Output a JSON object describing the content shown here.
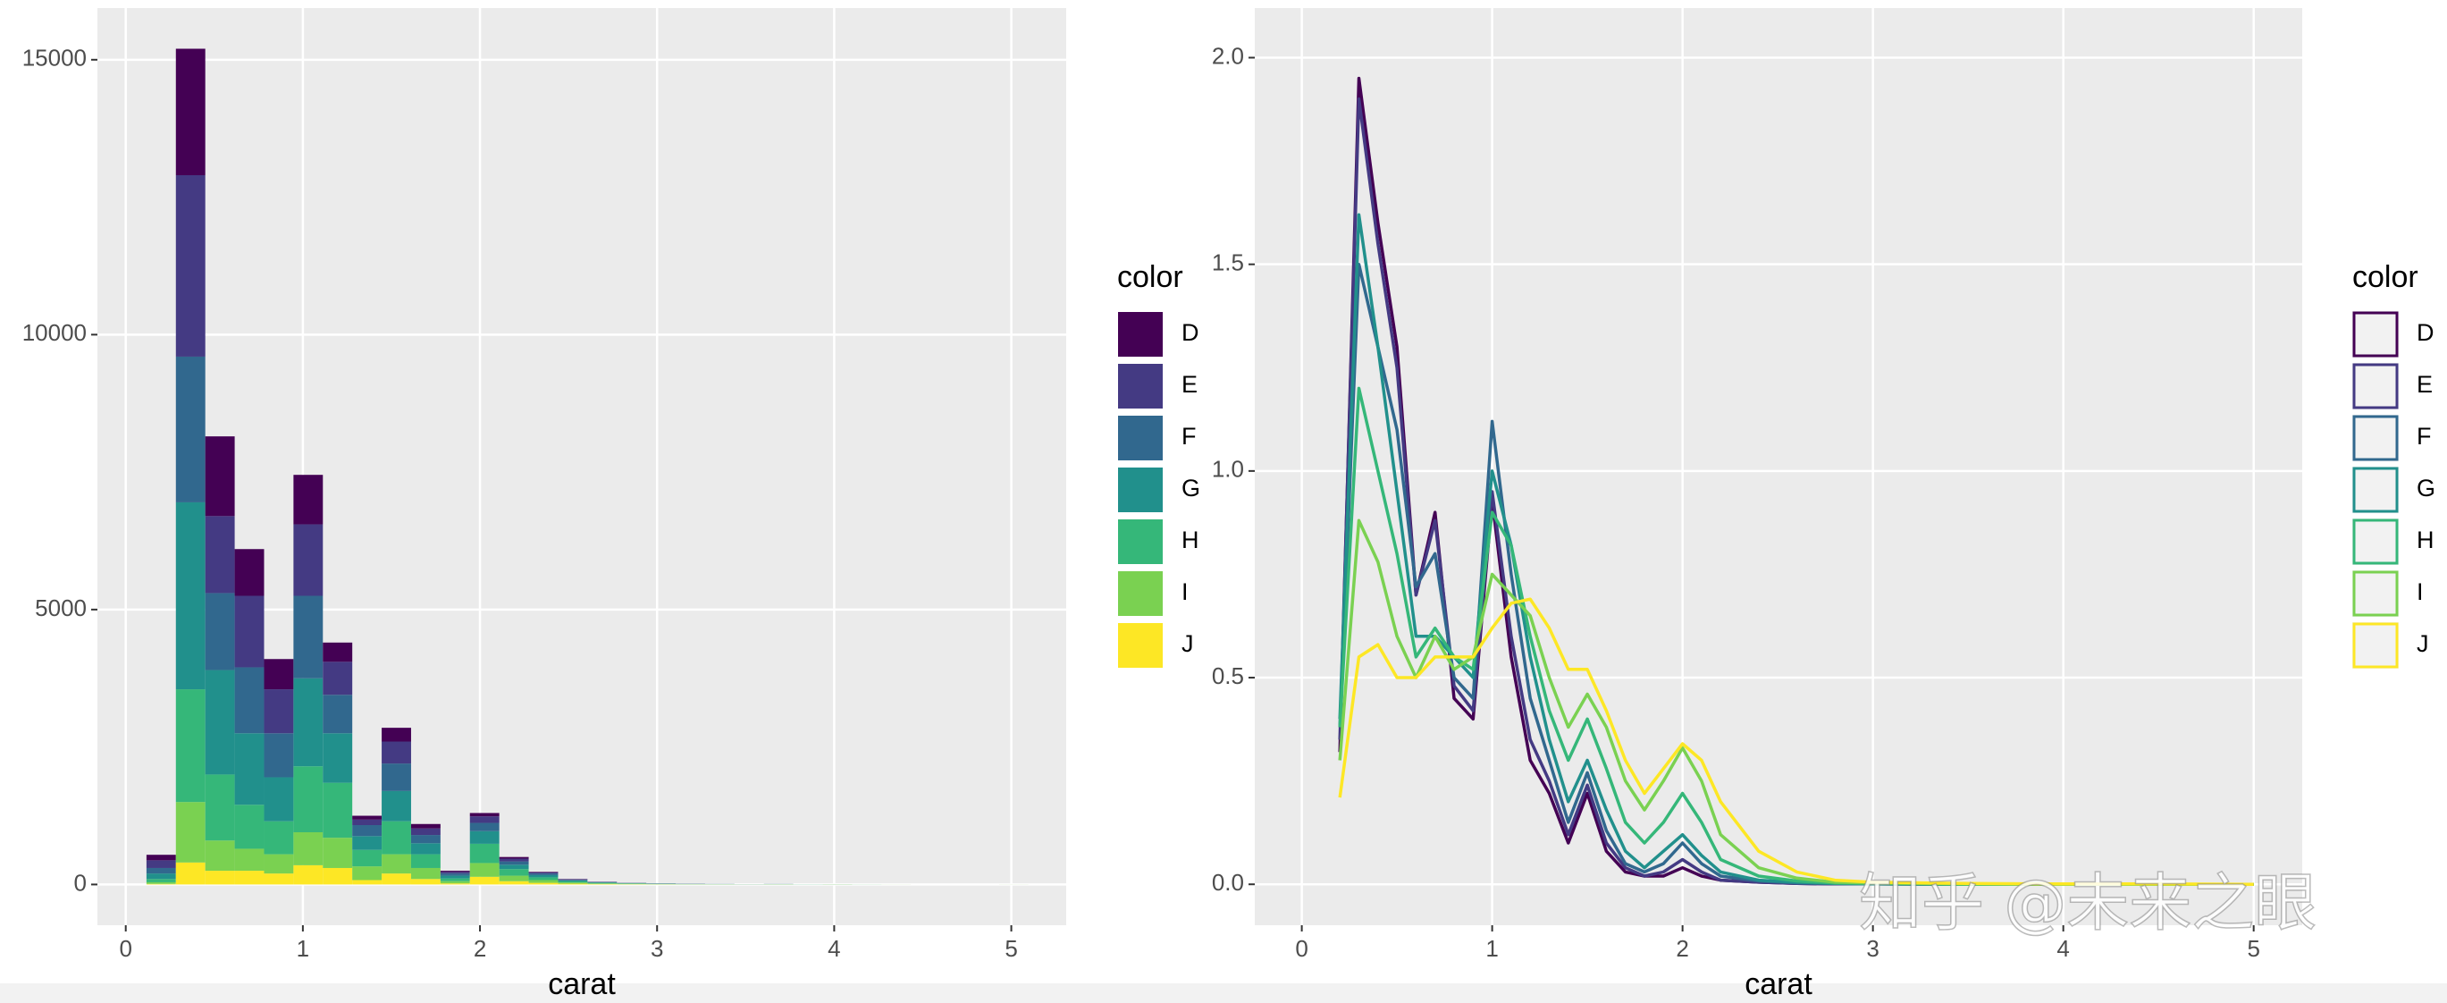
{
  "chart_data": [
    {
      "type": "histogram",
      "x_label": "carat",
      "legend_title": "color",
      "bins": [
        0.117,
        0.283,
        0.449,
        0.615,
        0.781,
        0.947,
        1.113,
        1.279,
        1.445,
        1.611,
        1.777,
        1.943,
        2.109,
        2.275,
        2.441,
        2.607,
        2.773,
        2.939,
        3.105,
        3.271,
        3.437,
        3.603,
        3.769,
        3.935,
        4.101,
        4.267,
        4.433,
        4.599,
        4.765,
        4.931,
        5.097
      ],
      "series": [
        {
          "name": "D",
          "color": "#440154",
          "values": [
            100,
            2300,
            1450,
            850,
            550,
            900,
            350,
            70,
            250,
            80,
            20,
            60,
            30,
            10,
            5,
            2,
            1,
            1,
            1,
            0,
            0,
            0,
            0,
            0,
            0,
            0,
            0,
            0,
            0,
            0
          ]
        },
        {
          "name": "E",
          "color": "#443A83",
          "values": [
            140,
            3300,
            1400,
            1300,
            800,
            1300,
            600,
            100,
            400,
            120,
            30,
            120,
            50,
            20,
            10,
            5,
            2,
            2,
            1,
            1,
            0,
            1,
            0,
            0,
            0,
            0,
            0,
            0,
            0,
            0
          ]
        },
        {
          "name": "F",
          "color": "#31688E",
          "values": [
            100,
            2650,
            1400,
            1200,
            800,
            1500,
            700,
            200,
            500,
            150,
            40,
            150,
            60,
            30,
            10,
            5,
            3,
            2,
            2,
            1,
            1,
            1,
            0,
            0,
            0,
            0,
            0,
            0,
            0,
            0
          ]
        },
        {
          "name": "G",
          "color": "#21908C",
          "values": [
            100,
            3400,
            1900,
            1300,
            800,
            1600,
            900,
            250,
            550,
            200,
            50,
            230,
            80,
            40,
            20,
            8,
            5,
            3,
            3,
            2,
            1,
            2,
            1,
            1,
            0,
            0,
            0,
            0,
            0,
            0
          ]
        },
        {
          "name": "H",
          "color": "#35B779",
          "values": [
            60,
            2050,
            1200,
            800,
            600,
            1200,
            1000,
            300,
            600,
            250,
            50,
            350,
            120,
            50,
            20,
            10,
            6,
            4,
            3,
            2,
            1,
            2,
            1,
            1,
            1,
            0,
            0,
            0,
            0,
            0
          ]
        },
        {
          "name": "I",
          "color": "#7AD151",
          "values": [
            30,
            1100,
            550,
            400,
            350,
            600,
            550,
            250,
            350,
            200,
            40,
            250,
            100,
            50,
            20,
            12,
            8,
            5,
            3,
            2,
            1,
            2,
            1,
            2,
            1,
            1,
            0,
            0,
            0,
            1
          ]
        },
        {
          "name": "J",
          "color": "#FDE725",
          "values": [
            10,
            400,
            250,
            250,
            200,
            350,
            300,
            80,
            200,
            100,
            20,
            140,
            60,
            30,
            15,
            8,
            5,
            3,
            2,
            2,
            1,
            2,
            0,
            1,
            0,
            0,
            0,
            0,
            0,
            0
          ]
        }
      ],
      "xlim": [
        -0.16,
        5.31
      ],
      "xticks": [
        0,
        1,
        2,
        3,
        4,
        5
      ],
      "ylim": [
        -741,
        15940
      ],
      "yticks": [
        0,
        5000,
        10000,
        15000
      ],
      "grid": true
    },
    {
      "type": "line",
      "x_label": "carat",
      "legend_title": "color",
      "x": [
        0.2,
        0.3,
        0.4,
        0.5,
        0.6,
        0.7,
        0.8,
        0.9,
        1.0,
        1.1,
        1.2,
        1.3,
        1.4,
        1.5,
        1.6,
        1.7,
        1.8,
        1.9,
        2.0,
        2.1,
        2.2,
        2.4,
        2.6,
        2.8,
        3.0,
        3.5,
        4.0,
        4.5,
        5.0
      ],
      "series": [
        {
          "name": "D",
          "color": "#440154",
          "values": [
            0.32,
            1.95,
            1.6,
            1.3,
            0.7,
            0.9,
            0.45,
            0.4,
            0.93,
            0.55,
            0.3,
            0.22,
            0.1,
            0.22,
            0.08,
            0.03,
            0.02,
            0.02,
            0.04,
            0.02,
            0.01,
            0.005,
            0.002,
            0.001,
            0.001,
            0,
            0,
            0,
            0
          ]
        },
        {
          "name": "E",
          "color": "#443A83",
          "values": [
            0.35,
            1.9,
            1.55,
            1.25,
            0.7,
            0.88,
            0.48,
            0.42,
            0.95,
            0.6,
            0.35,
            0.25,
            0.12,
            0.24,
            0.1,
            0.04,
            0.02,
            0.03,
            0.06,
            0.03,
            0.01,
            0.005,
            0.002,
            0.001,
            0.001,
            0,
            0,
            0,
            0
          ]
        },
        {
          "name": "F",
          "color": "#31688E",
          "values": [
            0.38,
            1.5,
            1.3,
            1.1,
            0.72,
            0.8,
            0.5,
            0.45,
            1.12,
            0.75,
            0.45,
            0.3,
            0.15,
            0.27,
            0.13,
            0.05,
            0.03,
            0.05,
            0.1,
            0.05,
            0.02,
            0.008,
            0.003,
            0.002,
            0.001,
            0,
            0,
            0,
            0
          ]
        },
        {
          "name": "G",
          "color": "#21908C",
          "values": [
            0.4,
            1.62,
            1.3,
            0.95,
            0.6,
            0.6,
            0.55,
            0.5,
            1.0,
            0.82,
            0.55,
            0.35,
            0.2,
            0.3,
            0.18,
            0.08,
            0.04,
            0.08,
            0.12,
            0.07,
            0.03,
            0.01,
            0.005,
            0.002,
            0.001,
            0,
            0,
            0,
            0
          ]
        },
        {
          "name": "H",
          "color": "#35B779",
          "values": [
            0.38,
            1.2,
            1.0,
            0.8,
            0.55,
            0.62,
            0.55,
            0.52,
            0.9,
            0.82,
            0.6,
            0.42,
            0.3,
            0.4,
            0.28,
            0.15,
            0.1,
            0.15,
            0.22,
            0.15,
            0.06,
            0.02,
            0.008,
            0.003,
            0.002,
            0,
            0,
            0,
            0
          ]
        },
        {
          "name": "I",
          "color": "#7AD151",
          "values": [
            0.3,
            0.88,
            0.78,
            0.6,
            0.5,
            0.6,
            0.52,
            0.55,
            0.75,
            0.7,
            0.65,
            0.5,
            0.38,
            0.46,
            0.38,
            0.25,
            0.18,
            0.25,
            0.33,
            0.25,
            0.12,
            0.04,
            0.015,
            0.005,
            0.003,
            0.001,
            0,
            0,
            0
          ]
        },
        {
          "name": "J",
          "color": "#FDE725",
          "values": [
            0.21,
            0.55,
            0.58,
            0.5,
            0.5,
            0.55,
            0.55,
            0.55,
            0.62,
            0.68,
            0.69,
            0.62,
            0.52,
            0.52,
            0.42,
            0.3,
            0.22,
            0.28,
            0.34,
            0.3,
            0.2,
            0.08,
            0.03,
            0.01,
            0.005,
            0.002,
            0.001,
            0.001,
            0
          ]
        }
      ],
      "xlim": [
        -0.247,
        5.255
      ],
      "xticks": [
        0,
        1,
        2,
        3,
        4,
        5
      ],
      "ylim": [
        -0.099,
        2.12
      ],
      "yticks": [
        {
          "value": 0,
          "label": "0.0"
        },
        0.5,
        {
          "value": 1,
          "label": "1.0"
        },
        1.5,
        {
          "value": 2,
          "label": "2.0"
        }
      ],
      "grid": true
    }
  ],
  "watermark": "知乎 @未来之眼"
}
